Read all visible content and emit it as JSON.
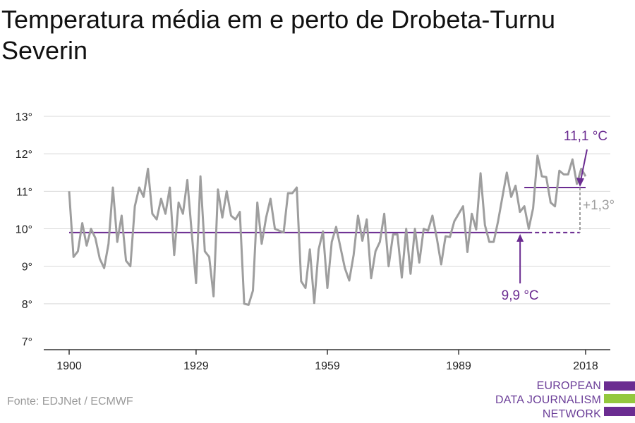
{
  "title": "Temperatura média em e perto de Drobeta-Turnu Severin",
  "source": "Fonte: EDJNet / ECMWF",
  "logo": {
    "lines": [
      "EUROPEAN",
      "DATA JOURNALISM",
      "NETWORK"
    ],
    "colors": [
      "#6b2c91",
      "#93c83e",
      "#6b2c91"
    ]
  },
  "colors": {
    "series": "#9e9e9e",
    "accent": "#6b2c91",
    "grid": "#d9d9d9",
    "axis": "#333333"
  },
  "chart_data": {
    "type": "line",
    "xlim": [
      1900,
      2018
    ],
    "ylim": [
      7,
      13
    ],
    "yticks": [
      7,
      8,
      9,
      10,
      11,
      12,
      13
    ],
    "ytick_labels": [
      "7°",
      "8°",
      "9°",
      "10°",
      "11°",
      "12°",
      "13°"
    ],
    "xticks": [
      1900,
      1929,
      1959,
      1989,
      2018
    ],
    "xtick_labels": [
      "1900",
      "1929",
      "1959",
      "1989",
      "2018"
    ],
    "grid": true,
    "series": [
      {
        "x": [
          1900,
          1901,
          1902,
          1903,
          1904,
          1905,
          1906,
          1907,
          1908,
          1909,
          1910,
          1911,
          1912,
          1913,
          1914,
          1915,
          1916,
          1917,
          1918,
          1919,
          1920,
          1921,
          1922,
          1923,
          1924,
          1925,
          1926,
          1927,
          1928,
          1929,
          1930,
          1931,
          1932,
          1933,
          1934,
          1935,
          1936,
          1937,
          1938,
          1939,
          1940,
          1941,
          1942,
          1943,
          1944,
          1945,
          1946,
          1947,
          1948,
          1949,
          1950,
          1951,
          1952,
          1953,
          1954,
          1955,
          1956,
          1957,
          1958,
          1959,
          1960,
          1961,
          1962,
          1963,
          1964,
          1965,
          1966,
          1967,
          1968,
          1969,
          1970,
          1971,
          1972,
          1973,
          1974,
          1975,
          1976,
          1977,
          1978,
          1979,
          1980,
          1981,
          1982,
          1983,
          1984,
          1985,
          1986,
          1987,
          1988,
          1989,
          1990,
          1991,
          1992,
          1993,
          1994,
          1995,
          1996,
          1997,
          1998,
          1999,
          2000,
          2001,
          2002,
          2003,
          2004,
          2005,
          2006,
          2007,
          2008,
          2009,
          2010,
          2011,
          2012,
          2013,
          2014,
          2015,
          2016,
          2017,
          2018
        ],
        "values": [
          11.0,
          9.25,
          9.4,
          10.15,
          9.55,
          10.0,
          9.75,
          9.2,
          8.95,
          9.6,
          11.1,
          9.65,
          10.35,
          9.15,
          9.0,
          10.6,
          11.1,
          10.85,
          11.6,
          10.4,
          10.25,
          10.8,
          10.4,
          11.1,
          9.3,
          10.7,
          10.4,
          11.3,
          9.9,
          8.55,
          11.4,
          9.4,
          9.25,
          8.2,
          11.05,
          10.3,
          11.0,
          10.35,
          10.25,
          10.45,
          8.0,
          7.97,
          8.35,
          10.7,
          9.6,
          10.3,
          10.8,
          10.0,
          9.95,
          9.9,
          10.95,
          10.95,
          11.1,
          8.6,
          8.42,
          9.45,
          8.02,
          9.45,
          9.93,
          8.42,
          9.65,
          10.05,
          9.5,
          8.95,
          8.62,
          9.3,
          10.35,
          9.68,
          10.25,
          8.68,
          9.4,
          9.65,
          10.4,
          9.0,
          9.85,
          9.85,
          8.7,
          10.0,
          8.8,
          10.0,
          9.1,
          10.0,
          9.95,
          10.35,
          9.75,
          9.05,
          9.8,
          9.78,
          10.2,
          10.4,
          10.6,
          9.38,
          10.4,
          9.98,
          11.48,
          10.1,
          9.65,
          9.65,
          10.2,
          10.85,
          11.5,
          10.85,
          11.15,
          10.45,
          10.6,
          10.0,
          10.55,
          11.95,
          11.4,
          11.38,
          10.7,
          10.6,
          11.55,
          11.45,
          11.45,
          11.85,
          11.2,
          11.6,
          11.4
        ]
      }
    ],
    "reference_lines": [
      {
        "label": "9,9 °C",
        "value": 9.9,
        "from": 1900,
        "to": 2018
      },
      {
        "label": "11,1 °C",
        "value": 11.1,
        "from": 2004,
        "to": 2018
      }
    ],
    "difference_label": "+1,3°"
  }
}
